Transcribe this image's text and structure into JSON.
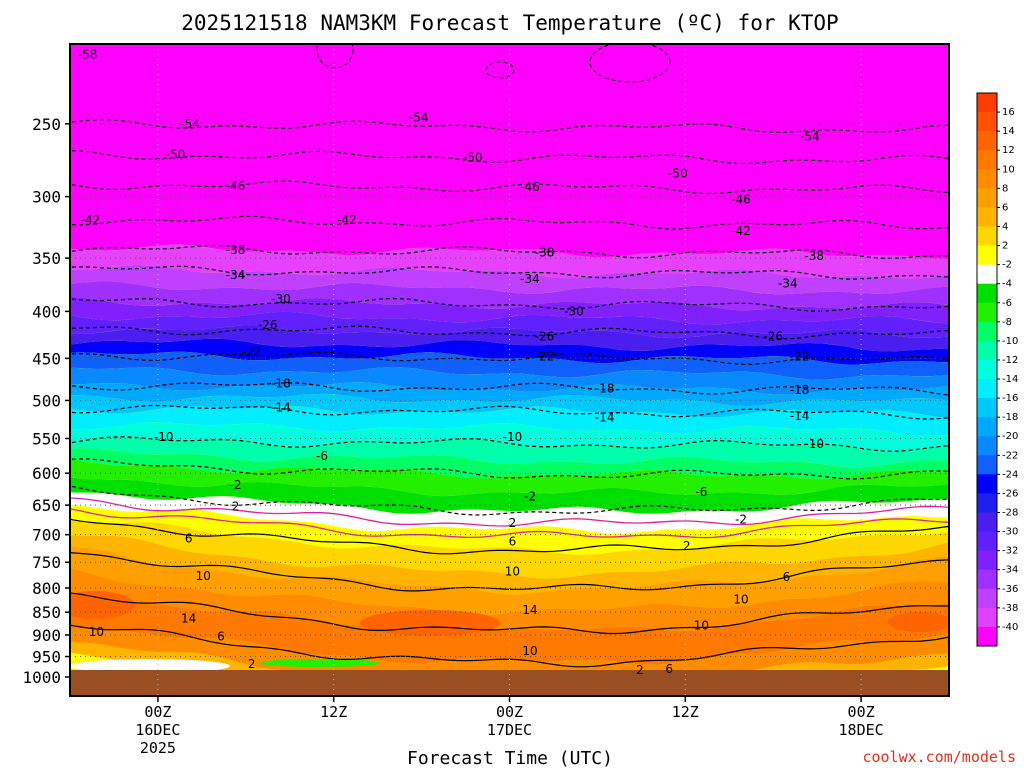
{
  "chart_data": {
    "type": "heatmap",
    "title": "2025121518 NAM3KM Forecast Temperature (ºC) for KTOP",
    "xlabel": "Forecast Time (UTC)",
    "ylabel": "",
    "credit": "coolwx.com/models",
    "y_axis": {
      "unit": "hPa",
      "scale": "log-pressure",
      "range": [
        1000,
        200
      ],
      "ticks": [
        "250",
        "300",
        "350",
        "400",
        "450",
        "500",
        "550",
        "600",
        "650",
        "700",
        "750",
        "800",
        "850",
        "900",
        "950",
        "1000"
      ]
    },
    "x_axis": {
      "range_hours": [
        -6,
        54
      ],
      "ticks": [
        {
          "line1": "00Z",
          "line2": "16DEC",
          "line3": "2025"
        },
        {
          "line1": "12Z",
          "line2": "",
          "line3": ""
        },
        {
          "line1": "00Z",
          "line2": "17DEC",
          "line3": ""
        },
        {
          "line1": "12Z",
          "line2": "",
          "line3": ""
        },
        {
          "line1": "00Z",
          "line2": "18DEC",
          "line3": ""
        }
      ]
    },
    "colorbar": {
      "labels": [
        "16",
        "14",
        "12",
        "10",
        "8",
        "6",
        "4",
        "2",
        "-2",
        "-4",
        "-6",
        "-8",
        "-10",
        "-12",
        "-14",
        "-16",
        "-18",
        "-20",
        "-22",
        "-24",
        "-26",
        "-28",
        "-30",
        "-32",
        "-34",
        "-36",
        "-38",
        "-40"
      ],
      "colors": [
        "#ff3c00",
        "#ff5000",
        "#ff6400",
        "#ff7800",
        "#ff8c00",
        "#ffa000",
        "#ffb400",
        "#ffd700",
        "#ffff00",
        "#ffffff",
        "#00e000",
        "#22f000",
        "#00ff66",
        "#00ffaa",
        "#00ffdd",
        "#00eeff",
        "#00c8ff",
        "#00a8ff",
        "#0a88ff",
        "#1060ff",
        "#0000ff",
        "#2020ee",
        "#4a1ef0",
        "#6020ff",
        "#8020ff",
        "#a030ff",
        "#c040ff",
        "#e040ff",
        "#ff00ff"
      ]
    },
    "contours": [
      {
        "value": -54,
        "p": 250
      },
      {
        "value": -50,
        "p": 270
      },
      {
        "value": -46,
        "p": 291
      },
      {
        "value": -42,
        "p": 318
      },
      {
        "value": -38,
        "p": 342
      },
      {
        "value": -34,
        "p": 360
      },
      {
        "value": -30,
        "p": 390
      },
      {
        "value": -26,
        "p": 418
      },
      {
        "value": -22,
        "p": 446
      },
      {
        "value": -18,
        "p": 481
      },
      {
        "value": -14,
        "p": 510
      },
      {
        "value": -10,
        "p": 553
      },
      {
        "value": -6,
        "p": 585
      },
      {
        "value": -2,
        "p": 626
      },
      {
        "value": 2,
        "p": 672
      },
      {
        "value": 6,
        "p": 728
      },
      {
        "value": 10,
        "p": 808
      },
      {
        "value": 14,
        "p": 875
      }
    ],
    "contour_labels": [
      {
        "text": "-58",
        "x": -4.8,
        "p": 210
      },
      {
        "text": "-54",
        "x": 2.2,
        "p": 250
      },
      {
        "text": "-54",
        "x": 17.8,
        "p": 246
      },
      {
        "text": "-54",
        "x": 44.5,
        "p": 258
      },
      {
        "text": "-50",
        "x": 1.2,
        "p": 270
      },
      {
        "text": "-50",
        "x": 21.5,
        "p": 272
      },
      {
        "text": "-50",
        "x": 35.5,
        "p": 283
      },
      {
        "text": "-46",
        "x": 5.3,
        "p": 292
      },
      {
        "text": "-46",
        "x": 25.4,
        "p": 293
      },
      {
        "text": "-46",
        "x": 39.8,
        "p": 302
      },
      {
        "text": "-42",
        "x": -4.6,
        "p": 318
      },
      {
        "text": "-42",
        "x": 12.9,
        "p": 318
      },
      {
        "text": "-42",
        "x": 39.8,
        "p": 327
      },
      {
        "text": "-38",
        "x": 5.3,
        "p": 343
      },
      {
        "text": "-38",
        "x": 26.4,
        "p": 345
      },
      {
        "text": "-38",
        "x": 44.8,
        "p": 348
      },
      {
        "text": "-34",
        "x": 5.3,
        "p": 365
      },
      {
        "text": "-34",
        "x": 25.4,
        "p": 369
      },
      {
        "text": "-34",
        "x": 43.0,
        "p": 373
      },
      {
        "text": "-30",
        "x": 8.4,
        "p": 388
      },
      {
        "text": "-30",
        "x": 28.4,
        "p": 400
      },
      {
        "text": "-26",
        "x": 7.5,
        "p": 414
      },
      {
        "text": "-26",
        "x": 26.4,
        "p": 426
      },
      {
        "text": "-26",
        "x": 42.0,
        "p": 426
      },
      {
        "text": "-22",
        "x": 6.4,
        "p": 443
      },
      {
        "text": "-22",
        "x": 26.4,
        "p": 448
      },
      {
        "text": "-22",
        "x": 43.8,
        "p": 448
      },
      {
        "text": "-18",
        "x": 8.4,
        "p": 479
      },
      {
        "text": "-18",
        "x": 30.5,
        "p": 485
      },
      {
        "text": "-18",
        "x": 43.8,
        "p": 487
      },
      {
        "text": "-14",
        "x": 8.4,
        "p": 509
      },
      {
        "text": "-14",
        "x": 30.5,
        "p": 522
      },
      {
        "text": "-14",
        "x": 43.8,
        "p": 520
      },
      {
        "text": "-10",
        "x": 0.4,
        "p": 548
      },
      {
        "text": "-10",
        "x": 24.2,
        "p": 548
      },
      {
        "text": "-10",
        "x": 44.8,
        "p": 558
      },
      {
        "text": "-6",
        "x": 11.2,
        "p": 575
      },
      {
        "text": "-6",
        "x": 37.1,
        "p": 629
      },
      {
        "text": "-2",
        "x": 5.3,
        "p": 618
      },
      {
        "text": "-2",
        "x": 25.4,
        "p": 636
      },
      {
        "text": "-2",
        "x": 39.8,
        "p": 674
      },
      {
        "text": "2",
        "x": 5.3,
        "p": 652
      },
      {
        "text": "2",
        "x": 24.2,
        "p": 680
      },
      {
        "text": "2",
        "x": 36.1,
        "p": 720
      },
      {
        "text": "6",
        "x": 2.1,
        "p": 707
      },
      {
        "text": "6",
        "x": 24.2,
        "p": 712
      },
      {
        "text": "6",
        "x": 42.9,
        "p": 778
      },
      {
        "text": "10",
        "x": 3.1,
        "p": 776
      },
      {
        "text": "10",
        "x": 24.2,
        "p": 768
      },
      {
        "text": "10",
        "x": 39.8,
        "p": 823
      },
      {
        "text": "10",
        "x": 37.1,
        "p": 879
      },
      {
        "text": "10",
        "x": 25.4,
        "p": 937
      },
      {
        "text": "10",
        "x": -4.2,
        "p": 893
      },
      {
        "text": "14",
        "x": 2.1,
        "p": 864
      },
      {
        "text": "14",
        "x": 25.4,
        "p": 845
      },
      {
        "text": "6",
        "x": 4.3,
        "p": 903
      },
      {
        "text": "2",
        "x": 6.4,
        "p": 968
      },
      {
        "text": "2",
        "x": 32.9,
        "p": 982
      },
      {
        "text": "6",
        "x": 34.9,
        "p": 980
      }
    ]
  }
}
